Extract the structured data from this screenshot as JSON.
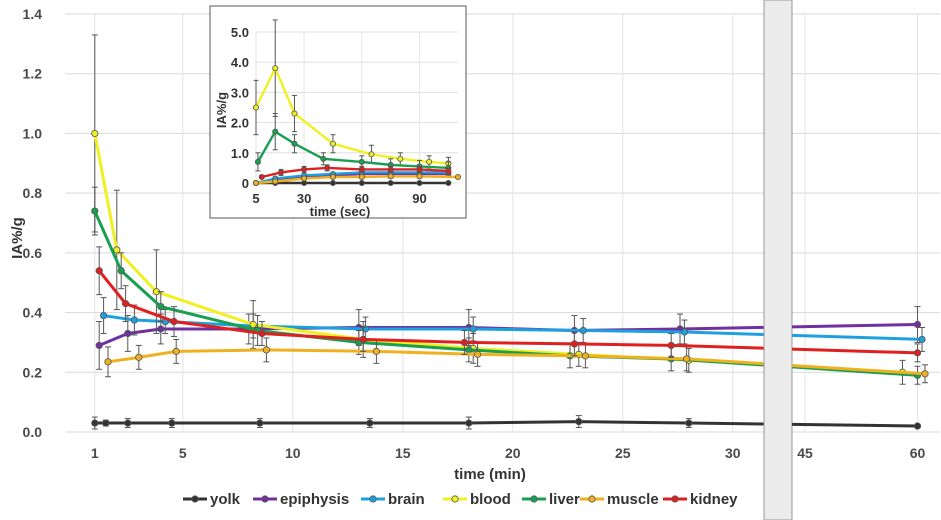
{
  "chart_data": [
    {
      "type": "line",
      "xlabel": "time (min)",
      "ylabel": "IA%/g",
      "ylim": [
        0,
        1.4
      ],
      "yticks": [
        "0.0",
        "0.2",
        "0.4",
        "0.6",
        "0.8",
        "1.0",
        "1.2",
        "1.4"
      ],
      "xticks": [
        "1",
        "5",
        "10",
        "15",
        "20",
        "25",
        "30",
        "45",
        "60"
      ],
      "axis_break": "between 30 and 45",
      "grid": true,
      "legend": "bottom",
      "series": [
        {
          "name": "yolk",
          "color": "#333333",
          "x": [
            1,
            1.5,
            2.5,
            4.5,
            8.5,
            13.5,
            18,
            23,
            28,
            60
          ],
          "y": [
            0.03,
            0.03,
            0.03,
            0.03,
            0.03,
            0.03,
            0.03,
            0.035,
            0.03,
            0.02
          ],
          "err": [
            0.02,
            0.01,
            0.015,
            0.015,
            0.015,
            0.015,
            0.02,
            0.02,
            0.015,
            0.005
          ]
        },
        {
          "name": "epiphysis",
          "color": "#7030a0",
          "x": [
            1.2,
            2.5,
            4.0,
            8.0,
            13.0,
            18.0,
            22.8,
            27.6,
            60
          ],
          "y": [
            0.29,
            0.33,
            0.345,
            0.345,
            0.35,
            0.35,
            0.34,
            0.345,
            0.36
          ],
          "err": [
            0.08,
            0.06,
            0.05,
            0.05,
            0.06,
            0.06,
            0.05,
            0.05,
            0.06
          ]
        },
        {
          "name": "brain",
          "color": "#1ca0e0",
          "x": [
            1.4,
            2.8,
            4.2,
            8.2,
            13.3,
            18.2,
            23.2,
            27.8,
            60.6
          ],
          "y": [
            0.39,
            0.375,
            0.37,
            0.355,
            0.345,
            0.345,
            0.34,
            0.335,
            0.31
          ],
          "err": [
            0.06,
            0.05,
            0.04,
            0.04,
            0.04,
            0.04,
            0.04,
            0.04,
            0.04
          ]
        },
        {
          "name": "blood",
          "color": "#f0f020",
          "x": [
            1,
            2,
            3.8,
            8.2,
            13.2,
            18.2,
            23.0,
            28.0,
            58
          ],
          "y": [
            1.0,
            0.61,
            0.47,
            0.36,
            0.31,
            0.28,
            0.26,
            0.24,
            0.2
          ],
          "err": [
            0.33,
            0.2,
            0.14,
            0.08,
            0.06,
            0.05,
            0.04,
            0.04,
            0.04
          ]
        },
        {
          "name": "liver",
          "color": "#18a050",
          "x": [
            1,
            2.2,
            4.0,
            8.4,
            13.0,
            18.0,
            22.6,
            27.2,
            60
          ],
          "y": [
            0.74,
            0.54,
            0.42,
            0.34,
            0.3,
            0.275,
            0.255,
            0.245,
            0.19
          ],
          "err": [
            0.08,
            0.06,
            0.05,
            0.05,
            0.04,
            0.04,
            0.04,
            0.04,
            0.03
          ]
        },
        {
          "name": "muscle",
          "color": "#f0b020",
          "x": [
            1.6,
            3.0,
            4.7,
            8.8,
            13.8,
            18.4,
            23.3,
            27.9,
            61
          ],
          "y": [
            0.235,
            0.25,
            0.27,
            0.275,
            0.27,
            0.26,
            0.255,
            0.245,
            0.195
          ],
          "err": [
            0.05,
            0.04,
            0.04,
            0.04,
            0.04,
            0.04,
            0.04,
            0.04,
            0.03
          ]
        },
        {
          "name": "kidney",
          "color": "#e02020",
          "x": [
            1.2,
            2.4,
            4.6,
            8.6,
            13.2,
            17.8,
            22.8,
            27.2,
            60
          ],
          "y": [
            0.54,
            0.43,
            0.37,
            0.33,
            0.31,
            0.3,
            0.295,
            0.29,
            0.265
          ],
          "err": [
            0.08,
            0.06,
            0.05,
            0.04,
            0.04,
            0.04,
            0.04,
            0.04,
            0.03
          ]
        }
      ]
    },
    {
      "type": "line",
      "xlabel": "time (sec)",
      "ylabel": "IA%/g",
      "ylim": [
        0,
        5.0
      ],
      "yticks": [
        "0",
        "1.0",
        "2.0",
        "3.0",
        "4.0",
        "5.0"
      ],
      "xticks": [
        "5",
        "30",
        "60",
        "90"
      ],
      "xlim": [
        5,
        110
      ],
      "series": [
        {
          "name": "yolk",
          "color": "#333333",
          "x": [
            5,
            15,
            30,
            45,
            60,
            75,
            90,
            105
          ],
          "y": [
            0,
            0,
            0,
            0,
            0,
            0,
            0,
            0
          ],
          "err": [
            0,
            0,
            0,
            0,
            0,
            0,
            0,
            0
          ]
        },
        {
          "name": "epiphysis",
          "color": "#7030a0",
          "x": [
            5,
            15,
            30,
            45,
            60,
            75,
            90,
            105
          ],
          "y": [
            0,
            0.1,
            0.2,
            0.25,
            0.3,
            0.3,
            0.3,
            0.3
          ],
          "err": [
            0.05,
            0.05,
            0.05,
            0.05,
            0.05,
            0.05,
            0.05,
            0.05
          ]
        },
        {
          "name": "brain",
          "color": "#1ca0e0",
          "x": [
            5,
            15,
            30,
            45,
            60,
            75,
            90,
            105
          ],
          "y": [
            0,
            0.15,
            0.25,
            0.3,
            0.35,
            0.35,
            0.35,
            0.35
          ],
          "err": [
            0.05,
            0.05,
            0.05,
            0.05,
            0.05,
            0.05,
            0.05,
            0.05
          ]
        },
        {
          "name": "blood",
          "color": "#f0f020",
          "x": [
            5,
            15,
            25,
            45,
            65,
            80,
            95,
            105
          ],
          "y": [
            2.5,
            3.8,
            2.3,
            1.3,
            0.95,
            0.8,
            0.7,
            0.65
          ],
          "err": [
            0.9,
            1.6,
            0.6,
            0.3,
            0.3,
            0.2,
            0.2,
            0.2
          ]
        },
        {
          "name": "liver",
          "color": "#18a050",
          "x": [
            6,
            15,
            25,
            40,
            60,
            75,
            90,
            105
          ],
          "y": [
            0.7,
            1.7,
            1.3,
            0.8,
            0.7,
            0.6,
            0.55,
            0.5
          ],
          "err": [
            0.3,
            0.6,
            0.3,
            0.2,
            0.2,
            0.2,
            0.2,
            0.2
          ]
        },
        {
          "name": "muscle",
          "color": "#f0b020",
          "x": [
            5,
            15,
            30,
            45,
            60,
            75,
            90,
            110
          ],
          "y": [
            0,
            0.05,
            0.15,
            0.2,
            0.2,
            0.22,
            0.22,
            0.2
          ],
          "err": [
            0.05,
            0.05,
            0.05,
            0.05,
            0.05,
            0.05,
            0.05,
            0.05
          ]
        },
        {
          "name": "kidney",
          "color": "#e02020",
          "x": [
            8,
            18,
            30,
            42,
            60,
            75,
            90,
            105
          ],
          "y": [
            0.2,
            0.35,
            0.45,
            0.5,
            0.45,
            0.45,
            0.45,
            0.4
          ],
          "err": [
            0.05,
            0.1,
            0.1,
            0.1,
            0.1,
            0.1,
            0.1,
            0.1
          ]
        }
      ]
    }
  ]
}
